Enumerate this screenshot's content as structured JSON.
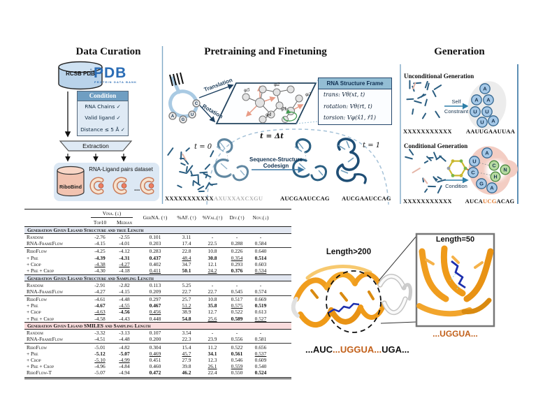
{
  "data_curation": {
    "title": "Data Curation",
    "db_cylinder_label": "RCSB PDB",
    "pdb_logo": {
      "vertical": "RCSB",
      "main": "PDB",
      "subtitle": "PROTEIN DATA BANK"
    },
    "condition_box": {
      "header": "Condition",
      "items": [
        "RNA Chains ✓",
        "Valid ligand ✓",
        "Distance ≤ 5 Å ✓"
      ]
    },
    "extraction_label": "Extraction",
    "ribobind_cylinder_label": "RiboBind",
    "dataset_caption": "RNA-Ligand pairs dataset",
    "ellipsis": "..."
  },
  "pretraining": {
    "title": "Pretraining and Finetuning",
    "translation_label": "Translation",
    "rotation_label": "Rotation",
    "loop_letters": [
      "A",
      "G",
      "U",
      "C"
    ],
    "phi_labels": [
      "φ1",
      "φ2",
      "φ3",
      "φ4",
      "φ5"
    ],
    "tau_label": "τ",
    "frame_box": {
      "header": "RNA Structure Frame",
      "rows": [
        "trans: Vθ(xt, t)",
        "rotation: Vθ(rt, t)",
        "torsion: Vφ(x̂1, r̂1)"
      ]
    },
    "time_labels": {
      "t0": "t = 0",
      "tdt": "t = Δt",
      "t1": "t = 1"
    },
    "codesign": {
      "line1": "Sequence-Structure",
      "line2": "Codesign"
    },
    "sequences": {
      "x": "XXXXXXXXXXX",
      "partial": "AXUXXAXCXGU",
      "mid": "AUCGAAUCCAG",
      "final": "AUCGAAUCCAG"
    }
  },
  "generation": {
    "title": "Generation",
    "unconditional": {
      "heading": "Unconditional Generation",
      "input_seq": "XXXXXXXXXXX",
      "arrow_top": "Self",
      "arrow_bottom": "Constraint",
      "output_seq": "AAUUGAAUUAA",
      "circle_letters": [
        "A",
        "A",
        "A",
        "U",
        "U",
        "U",
        "A"
      ]
    },
    "conditional": {
      "heading": "Conditional Generation",
      "input_seq": "XXXXXXXXXXX",
      "arrow_label": "Condition",
      "output_prefix": "AUCA",
      "output_highlight": "UCG",
      "output_suffix": "ACAG",
      "blue_circle_letters": [
        "A",
        "U",
        "C",
        "G",
        "A"
      ],
      "green_circle_letters": [
        "C",
        "N",
        "H"
      ]
    }
  },
  "table": {
    "headers": {
      "vina": "Vina. (↓)",
      "top10": "Top10",
      "median": "Median",
      "metrics": [
        "GerNA. (↑)",
        "%AF. (↑)",
        "%Val.(↑)",
        "Div.(↑)",
        "Nov.(↓)"
      ]
    },
    "sections": [
      {
        "title": "Generation Given Ligand Structure and true Length",
        "tint": "#e2e7f1",
        "groups": [
          [
            {
              "name": "Random",
              "cells": [
                [
                  "-2.76",
                  ""
                ],
                [
                  "-2.55",
                  ""
                ],
                [
                  "0.101",
                  ""
                ],
                [
                  "3.11",
                  ""
                ],
                [
                  "-",
                  ""
                ],
                [
                  "-",
                  ""
                ],
                [
                  "-",
                  ""
                ]
              ]
            },
            {
              "name": "RNA-FrameFlow",
              "cells": [
                [
                  "-4.15",
                  ""
                ],
                [
                  "-4.01",
                  ""
                ],
                [
                  "0.203",
                  ""
                ],
                [
                  "17.4",
                  ""
                ],
                [
                  "22.5",
                  ""
                ],
                [
                  "0.288",
                  ""
                ],
                [
                  "0.584",
                  ""
                ]
              ]
            }
          ],
          [
            {
              "name": "RiboFlow",
              "cells": [
                [
                  "-4.25",
                  ""
                ],
                [
                  "-4.12",
                  ""
                ],
                [
                  "0.283",
                  ""
                ],
                [
                  "22.8",
                  ""
                ],
                [
                  "10.8",
                  ""
                ],
                [
                  "0.226",
                  ""
                ],
                [
                  "0.640",
                  ""
                ]
              ]
            },
            {
              "name": "+ Pre",
              "cells": [
                [
                  "-4.39",
                  "b"
                ],
                [
                  "-4.31",
                  "b"
                ],
                [
                  "0.437",
                  "b"
                ],
                [
                  "48.4",
                  "u"
                ],
                [
                  "30.8",
                  "b"
                ],
                [
                  "0.354",
                  "u"
                ],
                [
                  "0.514",
                  "b"
                ]
              ]
            },
            {
              "name": "+ Crop",
              "cells": [
                [
                  "-4.38",
                  "u"
                ],
                [
                  "-4.27",
                  "u"
                ],
                [
                  "0.402",
                  ""
                ],
                [
                  "34.7",
                  ""
                ],
                [
                  "12.1",
                  ""
                ],
                [
                  "0.293",
                  ""
                ],
                [
                  "0.603",
                  ""
                ]
              ]
            },
            {
              "name": "+ Pre + Crop",
              "cells": [
                [
                  "-4.30",
                  ""
                ],
                [
                  "-4.18",
                  ""
                ],
                [
                  "0.411",
                  "u"
                ],
                [
                  "50.1",
                  "b"
                ],
                [
                  "24.2",
                  "u"
                ],
                [
                  "0.376",
                  "b"
                ],
                [
                  "0.534",
                  "u"
                ]
              ]
            }
          ]
        ]
      },
      {
        "title": "Generation Given Ligand Structure and Sampling Length",
        "tint": "#e2e7f1",
        "groups": [
          [
            {
              "name": "Random",
              "cells": [
                [
                  "-2.91",
                  ""
                ],
                [
                  "-2.82",
                  ""
                ],
                [
                  "0.113",
                  ""
                ],
                [
                  "5.25",
                  ""
                ],
                [
                  "-",
                  ""
                ],
                [
                  "-",
                  ""
                ],
                [
                  "-",
                  ""
                ]
              ]
            },
            {
              "name": "RNA-FrameFlow",
              "cells": [
                [
                  "-4.27",
                  ""
                ],
                [
                  "-4.15",
                  ""
                ],
                [
                  "0.209",
                  ""
                ],
                [
                  "22.7",
                  ""
                ],
                [
                  "22.7",
                  ""
                ],
                [
                  "0.545",
                  ""
                ],
                [
                  "0.574",
                  ""
                ]
              ]
            }
          ],
          [
            {
              "name": "RiboFlow",
              "cells": [
                [
                  "-4.61",
                  ""
                ],
                [
                  "-4.48",
                  ""
                ],
                [
                  "0.297",
                  ""
                ],
                [
                  "25.7",
                  ""
                ],
                [
                  "10.8",
                  ""
                ],
                [
                  "0.517",
                  ""
                ],
                [
                  "0.669",
                  ""
                ]
              ]
            },
            {
              "name": "+ Pre",
              "cells": [
                [
                  "-4.67",
                  "b"
                ],
                [
                  "-4.55",
                  "u"
                ],
                [
                  "0.467",
                  "b"
                ],
                [
                  "51.2",
                  "u"
                ],
                [
                  "35.8",
                  "b"
                ],
                [
                  "0.575",
                  "u"
                ],
                [
                  "0.519",
                  "b"
                ]
              ]
            },
            {
              "name": "+ Crop",
              "cells": [
                [
                  "-4.63",
                  "u"
                ],
                [
                  "-4.56",
                  "b"
                ],
                [
                  "0.456",
                  "u"
                ],
                [
                  "38.9",
                  ""
                ],
                [
                  "12.7",
                  ""
                ],
                [
                  "0.522",
                  ""
                ],
                [
                  "0.613",
                  ""
                ]
              ]
            },
            {
              "name": "+ Pre + Crop",
              "cells": [
                [
                  "-4.58",
                  ""
                ],
                [
                  "-4.43",
                  ""
                ],
                [
                  "0.448",
                  ""
                ],
                [
                  "54.8",
                  "b"
                ],
                [
                  "25.6",
                  "u"
                ],
                [
                  "0.589",
                  "b"
                ],
                [
                  "0.527",
                  "u"
                ]
              ]
            }
          ]
        ]
      },
      {
        "title": "Generation Given Ligand SMILES and Sampling Length",
        "tint": "#fadcdd",
        "groups": [
          [
            {
              "name": "Random",
              "cells": [
                [
                  "-3.32",
                  ""
                ],
                [
                  "-3.13",
                  ""
                ],
                [
                  "0.107",
                  ""
                ],
                [
                  "3.54",
                  ""
                ],
                [
                  "-",
                  ""
                ],
                [
                  "-",
                  ""
                ],
                [
                  "-",
                  ""
                ]
              ]
            },
            {
              "name": "RNA-FrameFlow",
              "cells": [
                [
                  "-4.51",
                  ""
                ],
                [
                  "-4.48",
                  ""
                ],
                [
                  "0.200",
                  ""
                ],
                [
                  "22.3",
                  ""
                ],
                [
                  "23.9",
                  ""
                ],
                [
                  "0.556",
                  ""
                ],
                [
                  "0.581",
                  ""
                ]
              ]
            }
          ],
          [
            {
              "name": "RiboFlow",
              "cells": [
                [
                  "-5.01",
                  ""
                ],
                [
                  "-4.82",
                  ""
                ],
                [
                  "0.304",
                  ""
                ],
                [
                  "15.4",
                  ""
                ],
                [
                  "11.2",
                  ""
                ],
                [
                  "0.522",
                  ""
                ],
                [
                  "0.656",
                  ""
                ]
              ]
            },
            {
              "name": "+ Pre",
              "cells": [
                [
                  "-5.12",
                  "b"
                ],
                [
                  "-5.07",
                  "b"
                ],
                [
                  "0.469",
                  "u"
                ],
                [
                  "45.7",
                  "u"
                ],
                [
                  "34.1",
                  "b"
                ],
                [
                  "0.561",
                  "b"
                ],
                [
                  "0.537",
                  "u"
                ]
              ]
            },
            {
              "name": "+ Crop",
              "cells": [
                [
                  "-5.10",
                  "u"
                ],
                [
                  "-4.99",
                  "u"
                ],
                [
                  "0.451",
                  ""
                ],
                [
                  "27.9",
                  ""
                ],
                [
                  "12.3",
                  ""
                ],
                [
                  "0.546",
                  ""
                ],
                [
                  "0.609",
                  ""
                ]
              ]
            },
            {
              "name": "+ Pre + Crop",
              "cells": [
                [
                  "-4.96",
                  ""
                ],
                [
                  "-4.84",
                  ""
                ],
                [
                  "0.460",
                  ""
                ],
                [
                  "39.8",
                  ""
                ],
                [
                  "26.1",
                  "u"
                ],
                [
                  "0.559",
                  "u"
                ],
                [
                  "0.540",
                  ""
                ]
              ]
            },
            {
              "name": "RiboFlow-T",
              "cells": [
                [
                  "-5.07",
                  ""
                ],
                [
                  "-4.94",
                  ""
                ],
                [
                  "0.472",
                  "b"
                ],
                [
                  "46.2",
                  "b"
                ],
                [
                  "22.4",
                  ""
                ],
                [
                  "0.550",
                  ""
                ],
                [
                  "0.524",
                  "b"
                ]
              ]
            }
          ]
        ]
      }
    ]
  },
  "structure_figure": {
    "label_long": "Length>200",
    "label_zoom": "Length=50",
    "zoom_motif": "...UGGUA...",
    "sequence": {
      "pre": "...AUC",
      "highlight": "...UGGUA...",
      "post": "UGA..."
    }
  },
  "colors": {
    "rna_blue": "#2a5d80",
    "panel_rule": "#7fa8c6",
    "steel_header": "#6f9ec2",
    "light_blue_bg": "#dfeaf5",
    "salmon_stick": "#e5b6a8",
    "table_tint_blue": "#e2e7f1",
    "table_tint_pink": "#fadcdd",
    "structure_orange": "#f09d1e",
    "motif_orange": "#c2601a",
    "ligand_blue": "#1c2fae",
    "highlight_orange": "#e07a30"
  }
}
